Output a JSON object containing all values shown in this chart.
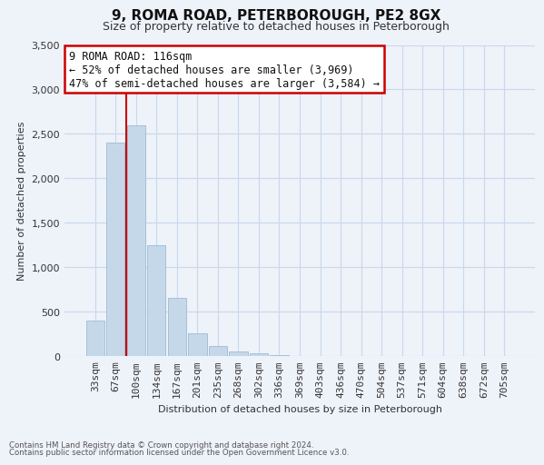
{
  "title": "9, ROMA ROAD, PETERBOROUGH, PE2 8GX",
  "subtitle": "Size of property relative to detached houses in Peterborough",
  "xlabel": "Distribution of detached houses by size in Peterborough",
  "ylabel": "Number of detached properties",
  "footnote1": "Contains HM Land Registry data © Crown copyright and database right 2024.",
  "footnote2": "Contains public sector information licensed under the Open Government Licence v3.0.",
  "bar_labels": [
    "33sqm",
    "67sqm",
    "100sqm",
    "134sqm",
    "167sqm",
    "201sqm",
    "235sqm",
    "268sqm",
    "302sqm",
    "336sqm",
    "369sqm",
    "403sqm",
    "436sqm",
    "470sqm",
    "504sqm",
    "537sqm",
    "571sqm",
    "604sqm",
    "638sqm",
    "672sqm",
    "705sqm"
  ],
  "bar_values": [
    400,
    2400,
    2600,
    1250,
    650,
    250,
    110,
    50,
    25,
    8,
    3,
    0,
    0,
    0,
    0,
    0,
    0,
    0,
    0,
    0,
    0
  ],
  "bar_color": "#c5d8ea",
  "bar_edge_color": "#9bbcd4",
  "vline_x_index": 1.5,
  "vline_color": "#cc0000",
  "ylim": [
    0,
    3500
  ],
  "yticks": [
    0,
    500,
    1000,
    1500,
    2000,
    2500,
    3000,
    3500
  ],
  "annotation_title": "9 ROMA ROAD: 116sqm",
  "annotation_line1": "← 52% of detached houses are smaller (3,969)",
  "annotation_line2": "47% of semi-detached houses are larger (3,584) →",
  "annotation_box_facecolor": "#ffffff",
  "annotation_box_edgecolor": "#cc0000",
  "background_color": "#eef2f9",
  "plot_bg_color": "#eef2f9",
  "grid_color": "#c8d8ec",
  "title_fontsize": 11,
  "subtitle_fontsize": 9,
  "axis_label_fontsize": 8,
  "tick_fontsize": 8,
  "annotation_fontsize": 8.5
}
